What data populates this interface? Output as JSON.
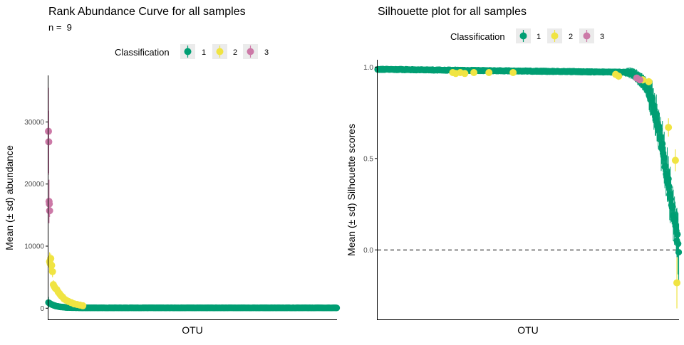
{
  "colors": {
    "class1": "#009E73",
    "class2": "#F0E442",
    "class3": "#CC79A7",
    "axis": "#000000",
    "tick_text": "#4D4D4D",
    "legend_key_bg": "#EBEBEB"
  },
  "chart_data": [
    {
      "type": "scatter",
      "title": "Rank Abundance Curve for all samples",
      "subtitle": "n =  9",
      "xlabel": "OTU",
      "ylabel": "Mean (± sd) abundance",
      "ylim": [
        -1800,
        37500
      ],
      "yticks": [
        0,
        10000,
        20000,
        30000
      ],
      "ytick_labels": [
        "0",
        "10000",
        "20000",
        "30000"
      ],
      "grid": false,
      "x_ticks_shown": false,
      "legend": {
        "title": "Classification",
        "position": "top",
        "entries": [
          "1",
          "2",
          "3"
        ]
      },
      "n_otu": 1000,
      "series": [
        {
          "name": "3",
          "x": [
            1,
            2,
            3,
            4,
            5
          ],
          "y": [
            28500,
            26800,
            17200,
            16800,
            15700
          ],
          "sd": [
            7000,
            5000,
            3500,
            1000,
            1000
          ]
        },
        {
          "name": "2",
          "x": [
            5,
            7,
            9,
            12,
            15,
            18,
            21,
            25,
            30,
            35,
            40,
            45,
            50,
            55,
            62,
            70,
            80,
            90,
            100,
            110,
            120
          ],
          "y": [
            7500,
            7200,
            8000,
            6900,
            5900,
            3800,
            3500,
            3200,
            3000,
            2600,
            2300,
            2000,
            1800,
            1500,
            1300,
            1100,
            900,
            700,
            600,
            500,
            400
          ],
          "sd": [
            1500,
            1200,
            800,
            1000,
            900,
            700,
            600,
            500,
            400,
            300,
            300,
            300,
            200,
            200,
            200,
            100,
            100,
            100,
            100,
            100,
            100
          ]
        },
        {
          "name": "1",
          "profile": "near zero for all OTUs (about 1000) with small error bars",
          "y_start": 900,
          "y_end": 0
        }
      ]
    },
    {
      "type": "scatter",
      "title": "Silhouette plot for all samples",
      "xlabel": "OTU",
      "ylabel": "Mean (± sd) Silhouette scores",
      "ylim": [
        -0.38,
        1.04
      ],
      "yticks": [
        0.0,
        0.5,
        1.0
      ],
      "ytick_labels": [
        "0.0",
        "0.5",
        "1.0"
      ],
      "reference_line": {
        "y": 0.0,
        "style": "dashed"
      },
      "grid": false,
      "x_ticks_shown": false,
      "legend": {
        "title": "Classification",
        "position": "top",
        "entries": [
          "1",
          "2",
          "3"
        ]
      },
      "n_otu": 1000,
      "series": [
        {
          "name": "1",
          "profile": "about 0.99 for most OTUs, slowly decreasing, then dropping steeply near the end to about 0.0",
          "y_start": 0.99,
          "y_end": 0.0
        },
        {
          "name": "2",
          "x": [
            250,
            260,
            275,
            290,
            320,
            370,
            450,
            790,
            800,
            880,
            900,
            965,
            988,
            993
          ],
          "y": [
            0.97,
            0.965,
            0.97,
            0.965,
            0.97,
            0.97,
            0.97,
            0.96,
            0.95,
            0.93,
            0.92,
            0.67,
            0.49,
            -0.18
          ],
          "sd": [
            0.01,
            0.01,
            0.01,
            0.01,
            0.01,
            0.01,
            0.01,
            0.02,
            0.02,
            0.02,
            0.02,
            0.05,
            0.06,
            0.14
          ]
        },
        {
          "name": "3",
          "x": [
            860,
            870
          ],
          "y": [
            0.94,
            0.93
          ],
          "sd": [
            0.01,
            0.01
          ]
        }
      ]
    }
  ]
}
